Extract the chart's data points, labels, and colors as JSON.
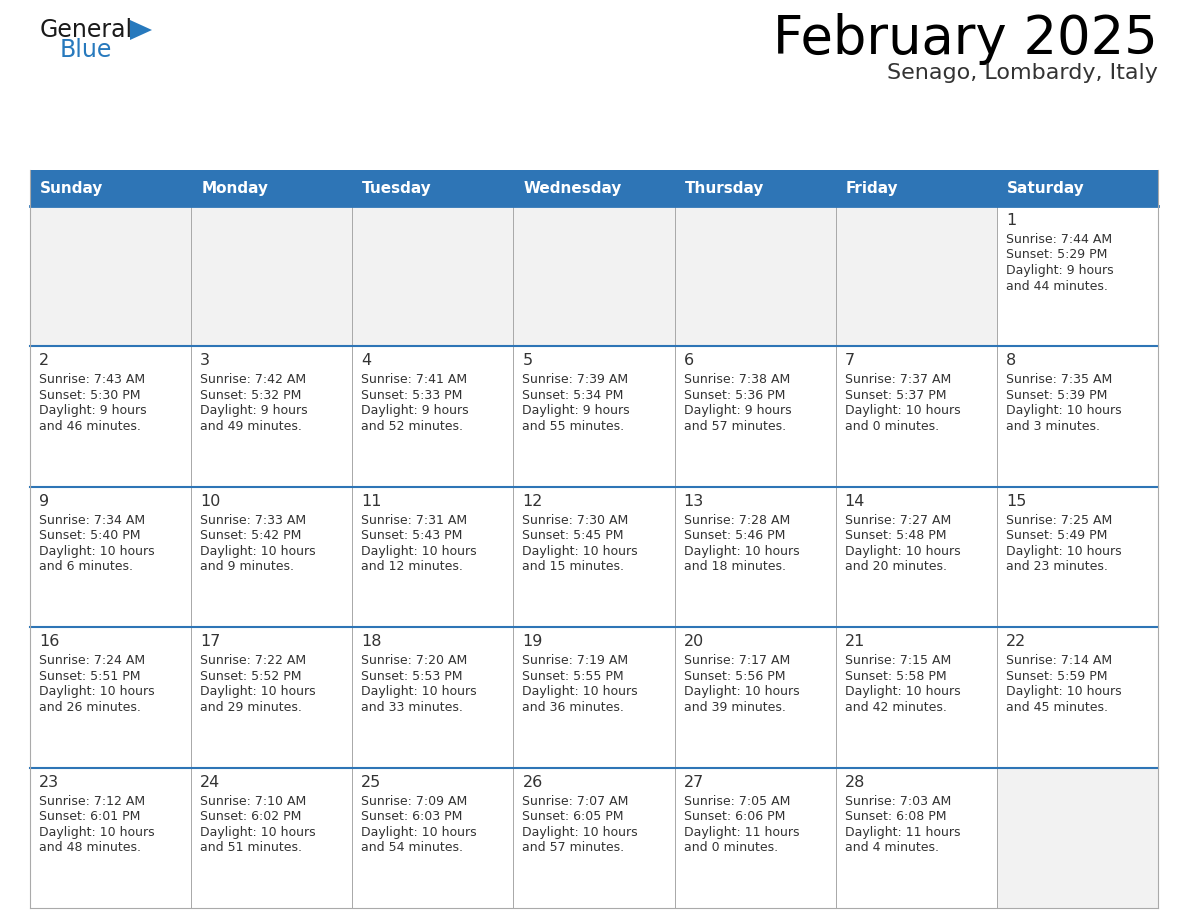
{
  "title": "February 2025",
  "subtitle": "Senago, Lombardy, Italy",
  "days_of_week": [
    "Sunday",
    "Monday",
    "Tuesday",
    "Wednesday",
    "Thursday",
    "Friday",
    "Saturday"
  ],
  "header_bg": "#2E75B6",
  "header_text_color": "#FFFFFF",
  "row_line_color": "#2E75B6",
  "grid_line_color": "#AAAAAA",
  "text_color": "#333333",
  "cell_bg": "#FFFFFF",
  "empty_cell_bg": "#F2F2F2",
  "calendar_data": [
    [
      null,
      null,
      null,
      null,
      null,
      null,
      {
        "day": "1",
        "sunrise": "7:44 AM",
        "sunset": "5:29 PM",
        "daylight": "9 hours",
        "daylight2": "and 44 minutes."
      }
    ],
    [
      {
        "day": "2",
        "sunrise": "7:43 AM",
        "sunset": "5:30 PM",
        "daylight": "9 hours",
        "daylight2": "and 46 minutes."
      },
      {
        "day": "3",
        "sunrise": "7:42 AM",
        "sunset": "5:32 PM",
        "daylight": "9 hours",
        "daylight2": "and 49 minutes."
      },
      {
        "day": "4",
        "sunrise": "7:41 AM",
        "sunset": "5:33 PM",
        "daylight": "9 hours",
        "daylight2": "and 52 minutes."
      },
      {
        "day": "5",
        "sunrise": "7:39 AM",
        "sunset": "5:34 PM",
        "daylight": "9 hours",
        "daylight2": "and 55 minutes."
      },
      {
        "day": "6",
        "sunrise": "7:38 AM",
        "sunset": "5:36 PM",
        "daylight": "9 hours",
        "daylight2": "and 57 minutes."
      },
      {
        "day": "7",
        "sunrise": "7:37 AM",
        "sunset": "5:37 PM",
        "daylight": "10 hours",
        "daylight2": "and 0 minutes."
      },
      {
        "day": "8",
        "sunrise": "7:35 AM",
        "sunset": "5:39 PM",
        "daylight": "10 hours",
        "daylight2": "and 3 minutes."
      }
    ],
    [
      {
        "day": "9",
        "sunrise": "7:34 AM",
        "sunset": "5:40 PM",
        "daylight": "10 hours",
        "daylight2": "and 6 minutes."
      },
      {
        "day": "10",
        "sunrise": "7:33 AM",
        "sunset": "5:42 PM",
        "daylight": "10 hours",
        "daylight2": "and 9 minutes."
      },
      {
        "day": "11",
        "sunrise": "7:31 AM",
        "sunset": "5:43 PM",
        "daylight": "10 hours",
        "daylight2": "and 12 minutes."
      },
      {
        "day": "12",
        "sunrise": "7:30 AM",
        "sunset": "5:45 PM",
        "daylight": "10 hours",
        "daylight2": "and 15 minutes."
      },
      {
        "day": "13",
        "sunrise": "7:28 AM",
        "sunset": "5:46 PM",
        "daylight": "10 hours",
        "daylight2": "and 18 minutes."
      },
      {
        "day": "14",
        "sunrise": "7:27 AM",
        "sunset": "5:48 PM",
        "daylight": "10 hours",
        "daylight2": "and 20 minutes."
      },
      {
        "day": "15",
        "sunrise": "7:25 AM",
        "sunset": "5:49 PM",
        "daylight": "10 hours",
        "daylight2": "and 23 minutes."
      }
    ],
    [
      {
        "day": "16",
        "sunrise": "7:24 AM",
        "sunset": "5:51 PM",
        "daylight": "10 hours",
        "daylight2": "and 26 minutes."
      },
      {
        "day": "17",
        "sunrise": "7:22 AM",
        "sunset": "5:52 PM",
        "daylight": "10 hours",
        "daylight2": "and 29 minutes."
      },
      {
        "day": "18",
        "sunrise": "7:20 AM",
        "sunset": "5:53 PM",
        "daylight": "10 hours",
        "daylight2": "and 33 minutes."
      },
      {
        "day": "19",
        "sunrise": "7:19 AM",
        "sunset": "5:55 PM",
        "daylight": "10 hours",
        "daylight2": "and 36 minutes."
      },
      {
        "day": "20",
        "sunrise": "7:17 AM",
        "sunset": "5:56 PM",
        "daylight": "10 hours",
        "daylight2": "and 39 minutes."
      },
      {
        "day": "21",
        "sunrise": "7:15 AM",
        "sunset": "5:58 PM",
        "daylight": "10 hours",
        "daylight2": "and 42 minutes."
      },
      {
        "day": "22",
        "sunrise": "7:14 AM",
        "sunset": "5:59 PM",
        "daylight": "10 hours",
        "daylight2": "and 45 minutes."
      }
    ],
    [
      {
        "day": "23",
        "sunrise": "7:12 AM",
        "sunset": "6:01 PM",
        "daylight": "10 hours",
        "daylight2": "and 48 minutes."
      },
      {
        "day": "24",
        "sunrise": "7:10 AM",
        "sunset": "6:02 PM",
        "daylight": "10 hours",
        "daylight2": "and 51 minutes."
      },
      {
        "day": "25",
        "sunrise": "7:09 AM",
        "sunset": "6:03 PM",
        "daylight": "10 hours",
        "daylight2": "and 54 minutes."
      },
      {
        "day": "26",
        "sunrise": "7:07 AM",
        "sunset": "6:05 PM",
        "daylight": "10 hours",
        "daylight2": "and 57 minutes."
      },
      {
        "day": "27",
        "sunrise": "7:05 AM",
        "sunset": "6:06 PM",
        "daylight": "11 hours",
        "daylight2": "and 0 minutes."
      },
      {
        "day": "28",
        "sunrise": "7:03 AM",
        "sunset": "6:08 PM",
        "daylight": "11 hours",
        "daylight2": "and 4 minutes."
      },
      null
    ]
  ],
  "logo_color_general": "#1a1a1a",
  "logo_color_blue": "#2779BD"
}
